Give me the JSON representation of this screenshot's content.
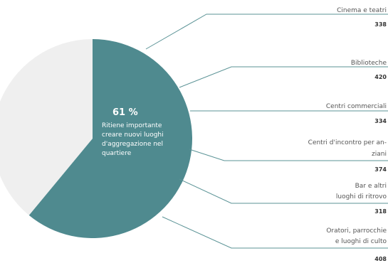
{
  "colors": {
    "accent": "#4f8a8f",
    "rest": "#efefef",
    "line": "#5b9396"
  },
  "chart_data": {
    "type": "pie",
    "slices": [
      {
        "value": 61,
        "color": "#4f8a8f"
      },
      {
        "value": 39,
        "color": "#efefef"
      }
    ],
    "highlight": {
      "percent_label": "61 %",
      "description_lines": [
        "Ritiene importante",
        "creare nuovi luoghi",
        "d'aggregazione nel",
        "quartiere"
      ]
    },
    "categories": [
      {
        "label_lines": [
          "Cinema e teatri"
        ],
        "value": 338
      },
      {
        "label_lines": [
          "Biblioteche"
        ],
        "value": 420
      },
      {
        "label_lines": [
          "Centri commerciali"
        ],
        "value": 334
      },
      {
        "label_lines": [
          "Centri d'incontro per an-",
          "ziani"
        ],
        "value": 374
      },
      {
        "label_lines": [
          "Bar e altri",
          "luoghi di ritrovo"
        ],
        "value": 318
      },
      {
        "label_lines": [
          "Oratori, parrocchie",
          "e luoghi di culto"
        ],
        "value": 408
      }
    ]
  }
}
